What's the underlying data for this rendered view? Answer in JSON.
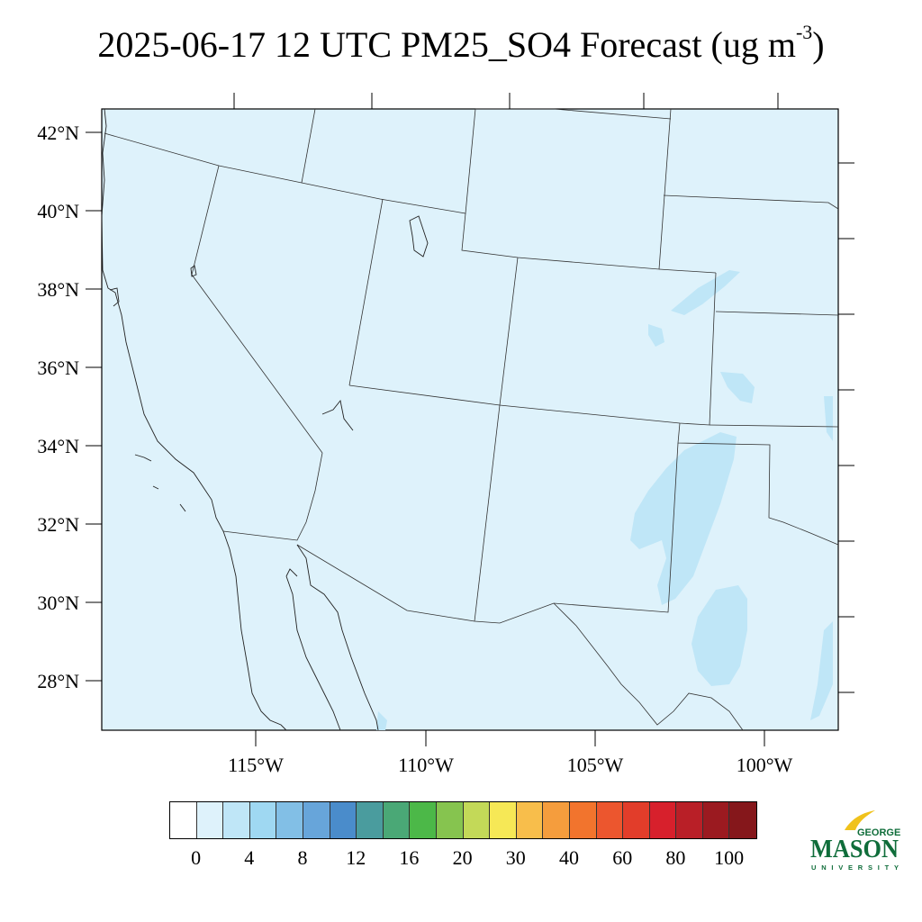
{
  "title": {
    "text": "2025-06-17 12 UTC PM25_SO4 Forecast (ug m",
    "exponent": "-3",
    "closing": ")"
  },
  "map": {
    "lat_labels": [
      "42°N",
      "40°N",
      "38°N",
      "36°N",
      "34°N",
      "32°N",
      "30°N",
      "28°N"
    ],
    "lon_labels": [
      "115°W",
      "110°W",
      "105°W",
      "100°W"
    ],
    "background_color": "#def2fb",
    "light_blue_color": "#bfe6f7"
  },
  "legend": {
    "colors": [
      "#ffffff",
      "#def2fb",
      "#bfe6f7",
      "#9fd8f2",
      "#82bfe6",
      "#67a5da",
      "#4a8ccb",
      "#4a9c9e",
      "#4aa876",
      "#4cb848",
      "#86c44f",
      "#c3d958",
      "#f6e856",
      "#f8be4b",
      "#f59d3d",
      "#f2742d",
      "#ec562e",
      "#e23d2a",
      "#d7202c",
      "#b91f27",
      "#9b1a20",
      "#85171b"
    ],
    "labels": [
      "0",
      "4",
      "8",
      "12",
      "16",
      "20",
      "30",
      "40",
      "60",
      "80",
      "100"
    ]
  },
  "logo": {
    "top": "GEORGE",
    "main": "MASON",
    "bottom": "UNIVERSITY",
    "green": "#0f6d3a",
    "gold": "#f0c21c"
  }
}
